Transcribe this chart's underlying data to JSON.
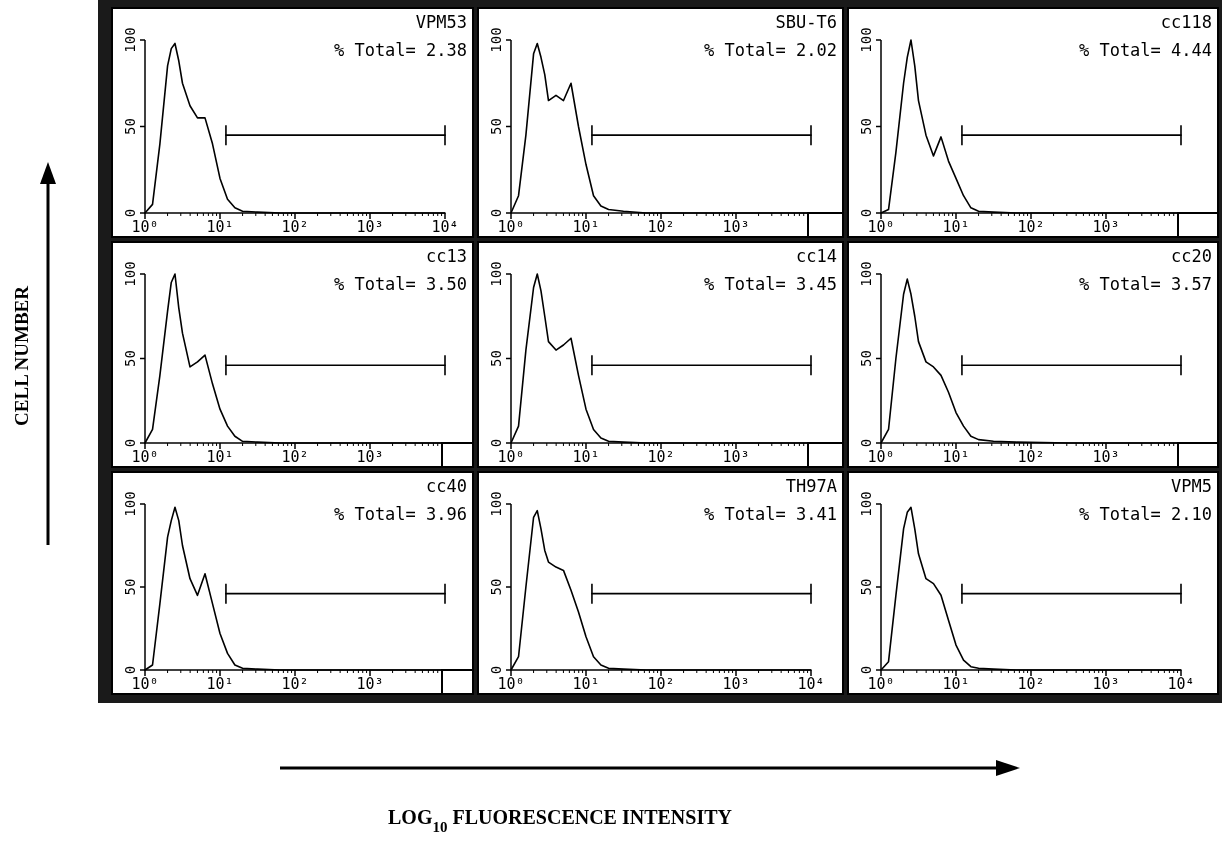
{
  "chart_data": [
    {
      "type": "line",
      "annotations": [
        "VPM53",
        "% Total= 2.38"
      ],
      "log": "x",
      "xlim": [
        1,
        10000
      ],
      "ylim": [
        0,
        100
      ],
      "xticks": [
        {
          "value": 1,
          "label": "10⁰"
        },
        {
          "value": 10,
          "label": "10¹"
        },
        {
          "value": 100,
          "label": "10²"
        },
        {
          "value": 1000,
          "label": "10³"
        },
        {
          "value": 10000,
          "label": "10⁴"
        }
      ],
      "yticks": [
        0,
        50,
        100
      ],
      "series": [
        {
          "color": "#000000",
          "x": [
            1,
            1.26,
            1.58,
            2,
            2.24,
            2.51,
            2.82,
            3.16,
            3.98,
            5.01,
            6.31,
            7.94,
            10,
            12.6,
            15.8,
            20,
            31.6,
            63.1,
            316,
            1000,
            10000
          ],
          "values": [
            0,
            5,
            40,
            85,
            95,
            98,
            88,
            75,
            62,
            55,
            55,
            40,
            20,
            8,
            3,
            1,
            0.5,
            0,
            0,
            0,
            0
          ]
        },
        {
          "color": "#000000",
          "x": [
            12,
            10000
          ],
          "values": [
            45,
            45
          ]
        }
      ]
    },
    {
      "type": "line",
      "annotations": [
        "SBU-T6",
        "% Total= 2.02"
      ],
      "log": "x",
      "xlim": [
        1,
        10000
      ],
      "ylim": [
        0,
        100
      ],
      "xticks": [
        {
          "value": 1,
          "label": "10⁰"
        },
        {
          "value": 10,
          "label": "10¹"
        },
        {
          "value": 100,
          "label": "10²"
        },
        {
          "value": 1000,
          "label": "10³"
        },
        {
          "value": 10000,
          "label": null
        }
      ],
      "yticks": [
        0,
        50,
        100
      ],
      "series": [
        {
          "color": "#000000",
          "x": [
            1,
            1.26,
            1.58,
            2,
            2.24,
            2.51,
            2.82,
            3.16,
            3.98,
            5.01,
            6.31,
            7.94,
            10,
            12.6,
            15.8,
            20,
            31.6,
            63.1,
            316,
            1000,
            10000
          ],
          "values": [
            0,
            10,
            45,
            92,
            98,
            90,
            80,
            65,
            68,
            65,
            75,
            50,
            28,
            10,
            4,
            2,
            1,
            0,
            0,
            0,
            0
          ]
        },
        {
          "color": "#000000",
          "x": [
            12,
            10000
          ],
          "values": [
            45,
            45
          ]
        }
      ]
    },
    {
      "type": "line",
      "annotations": [
        "cc118",
        "% Total= 4.44"
      ],
      "log": "x",
      "xlim": [
        1,
        10000
      ],
      "ylim": [
        0,
        100
      ],
      "xticks": [
        {
          "value": 1,
          "label": "10⁰"
        },
        {
          "value": 10,
          "label": "10¹"
        },
        {
          "value": 100,
          "label": "10²"
        },
        {
          "value": 1000,
          "label": "10³"
        },
        {
          "value": 10000,
          "label": null
        }
      ],
      "yticks": [
        0,
        50,
        100
      ],
      "series": [
        {
          "color": "#000000",
          "x": [
            1,
            1.26,
            1.58,
            2,
            2.24,
            2.51,
            2.82,
            3.16,
            3.98,
            5.01,
            6.31,
            7.94,
            10,
            12.6,
            15.8,
            20,
            31.6,
            63.1,
            316,
            1000,
            10000
          ],
          "values": [
            0,
            2,
            35,
            75,
            90,
            100,
            85,
            65,
            45,
            33,
            44,
            30,
            20,
            10,
            3,
            1,
            0.5,
            0,
            0,
            0,
            0
          ]
        },
        {
          "color": "#000000",
          "x": [
            12,
            10000
          ],
          "values": [
            45,
            45
          ]
        }
      ]
    },
    {
      "type": "line",
      "annotations": [
        "cc13",
        "% Total= 3.50"
      ],
      "ylabel": "CELL NUMBER",
      "log": "x",
      "xlim": [
        1,
        10000
      ],
      "ylim": [
        0,
        100
      ],
      "xticks": [
        {
          "value": 1,
          "label": "10⁰"
        },
        {
          "value": 10,
          "label": "10¹"
        },
        {
          "value": 100,
          "label": "10²"
        },
        {
          "value": 1000,
          "label": "10³"
        },
        {
          "value": 10000,
          "label": null
        }
      ],
      "yticks": [
        0,
        50,
        100
      ],
      "series": [
        {
          "color": "#000000",
          "x": [
            1,
            1.26,
            1.58,
            2,
            2.24,
            2.51,
            2.82,
            3.16,
            3.98,
            5.01,
            6.31,
            7.94,
            10,
            12.6,
            15.8,
            20,
            31.6,
            63.1,
            316,
            1000,
            10000
          ],
          "values": [
            0,
            8,
            40,
            78,
            95,
            100,
            80,
            65,
            45,
            48,
            52,
            35,
            20,
            10,
            4,
            1,
            0.5,
            0,
            0,
            0,
            0
          ]
        },
        {
          "color": "#000000",
          "x": [
            12,
            10000
          ],
          "values": [
            46,
            46
          ]
        }
      ]
    },
    {
      "type": "line",
      "annotations": [
        "cc14",
        "% Total= 3.45"
      ],
      "log": "x",
      "xlim": [
        1,
        10000
      ],
      "ylim": [
        0,
        100
      ],
      "xticks": [
        {
          "value": 1,
          "label": "10⁰"
        },
        {
          "value": 10,
          "label": "10¹"
        },
        {
          "value": 100,
          "label": "10²"
        },
        {
          "value": 1000,
          "label": "10³"
        },
        {
          "value": 10000,
          "label": null
        }
      ],
      "yticks": [
        0,
        50,
        100
      ],
      "series": [
        {
          "color": "#000000",
          "x": [
            1,
            1.26,
            1.58,
            2,
            2.24,
            2.51,
            2.82,
            3.16,
            3.98,
            5.01,
            6.31,
            7.94,
            10,
            12.6,
            15.8,
            20,
            31.6,
            63.1,
            316,
            1000,
            10000
          ],
          "values": [
            0,
            10,
            55,
            92,
            100,
            90,
            75,
            60,
            55,
            58,
            62,
            40,
            20,
            8,
            3,
            1,
            0.5,
            0,
            0,
            0,
            0
          ]
        },
        {
          "color": "#000000",
          "x": [
            12,
            10000
          ],
          "values": [
            46,
            46
          ]
        }
      ]
    },
    {
      "type": "line",
      "annotations": [
        "cc20",
        "% Total= 3.57"
      ],
      "log": "x",
      "xlim": [
        1,
        10000
      ],
      "ylim": [
        0,
        100
      ],
      "xticks": [
        {
          "value": 1,
          "label": "10⁰"
        },
        {
          "value": 10,
          "label": "10¹"
        },
        {
          "value": 100,
          "label": "10²"
        },
        {
          "value": 1000,
          "label": "10³"
        },
        {
          "value": 10000,
          "label": null
        }
      ],
      "yticks": [
        0,
        50,
        100
      ],
      "series": [
        {
          "color": "#000000",
          "x": [
            1,
            1.26,
            1.58,
            2,
            2.24,
            2.51,
            2.82,
            3.16,
            3.98,
            5.01,
            6.31,
            7.94,
            10,
            12.6,
            15.8,
            20,
            31.6,
            63.1,
            316,
            1000,
            10000
          ],
          "values": [
            0,
            8,
            50,
            88,
            97,
            88,
            75,
            60,
            48,
            45,
            40,
            30,
            18,
            10,
            4,
            2,
            1,
            0.5,
            0,
            0,
            0
          ]
        },
        {
          "color": "#000000",
          "x": [
            12,
            10000
          ],
          "values": [
            46,
            46
          ]
        }
      ]
    },
    {
      "type": "line",
      "annotations": [
        "cc40",
        "% Total= 3.96"
      ],
      "log": "x",
      "xlim": [
        1,
        10000
      ],
      "ylim": [
        0,
        100
      ],
      "xticks": [
        {
          "value": 1,
          "label": "10⁰"
        },
        {
          "value": 10,
          "label": "10¹"
        },
        {
          "value": 100,
          "label": "10²"
        },
        {
          "value": 1000,
          "label": "10³"
        },
        {
          "value": 10000,
          "label": null
        }
      ],
      "yticks": [
        0,
        50,
        100
      ],
      "series": [
        {
          "color": "#000000",
          "x": [
            1,
            1.26,
            1.58,
            2,
            2.24,
            2.51,
            2.82,
            3.16,
            3.98,
            5.01,
            6.31,
            7.94,
            10,
            12.6,
            15.8,
            20,
            31.6,
            63.1,
            316,
            1000,
            10000
          ],
          "values": [
            0,
            3,
            40,
            80,
            90,
            98,
            90,
            75,
            55,
            45,
            58,
            40,
            22,
            10,
            3,
            1,
            0.5,
            0,
            0,
            0,
            0
          ]
        },
        {
          "color": "#000000",
          "x": [
            12,
            10000
          ],
          "values": [
            46,
            46
          ]
        }
      ]
    },
    {
      "type": "line",
      "annotations": [
        "TH97A",
        "% Total= 3.41"
      ],
      "xlabel": "LOG$_{10}$ FLUORESCENCE INTENSITY",
      "log": "x",
      "xlim": [
        1,
        10000
      ],
      "ylim": [
        0,
        100
      ],
      "xticks": [
        {
          "value": 1,
          "label": "10⁰"
        },
        {
          "value": 10,
          "label": "10¹"
        },
        {
          "value": 100,
          "label": "10²"
        },
        {
          "value": 1000,
          "label": "10³"
        },
        {
          "value": 10000,
          "label": "10⁴"
        }
      ],
      "yticks": [
        0,
        50,
        100
      ],
      "series": [
        {
          "color": "#000000",
          "x": [
            1,
            1.26,
            1.58,
            2,
            2.24,
            2.51,
            2.82,
            3.16,
            3.98,
            5.01,
            6.31,
            7.94,
            10,
            12.6,
            15.8,
            20,
            31.6,
            63.1,
            316,
            1000,
            10000
          ],
          "values": [
            0,
            8,
            50,
            92,
            96,
            85,
            72,
            65,
            62,
            60,
            48,
            35,
            20,
            8,
            3,
            1,
            0.5,
            0,
            0,
            0,
            0
          ]
        },
        {
          "color": "#000000",
          "x": [
            12,
            10000
          ],
          "values": [
            46,
            46
          ]
        }
      ]
    },
    {
      "type": "line",
      "annotations": [
        "VPM5",
        "% Total= 2.10"
      ],
      "log": "x",
      "xlim": [
        1,
        10000
      ],
      "ylim": [
        0,
        100
      ],
      "xticks": [
        {
          "value": 1,
          "label": "10⁰"
        },
        {
          "value": 10,
          "label": "10¹"
        },
        {
          "value": 100,
          "label": "10²"
        },
        {
          "value": 1000,
          "label": "10³"
        },
        {
          "value": 10000,
          "label": "10⁴"
        }
      ],
      "yticks": [
        0,
        50,
        100
      ],
      "series": [
        {
          "color": "#000000",
          "x": [
            1,
            1.26,
            1.58,
            2,
            2.24,
            2.51,
            2.82,
            3.16,
            3.98,
            5.01,
            6.31,
            7.94,
            10,
            12.6,
            15.8,
            20,
            31.6,
            63.1,
            316,
            1000,
            10000
          ],
          "values": [
            0,
            5,
            45,
            85,
            95,
            98,
            85,
            70,
            55,
            52,
            45,
            30,
            15,
            6,
            2,
            1,
            0.5,
            0,
            0,
            0,
            0
          ]
        },
        {
          "color": "#000000",
          "x": [
            12,
            10000
          ],
          "values": [
            46,
            46
          ]
        }
      ]
    }
  ]
}
